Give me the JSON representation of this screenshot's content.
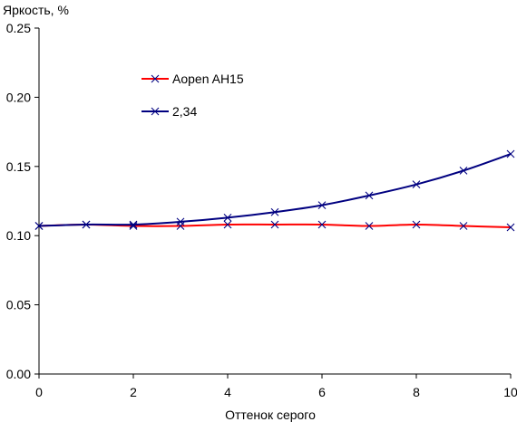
{
  "chart_data": {
    "type": "line",
    "title": "",
    "ylabel": "Яркость, %",
    "xlabel": "Оттенок серого",
    "xlim": [
      0,
      10
    ],
    "ylim": [
      0,
      0.25
    ],
    "x_ticks": [
      0,
      2,
      4,
      6,
      8,
      10
    ],
    "x_tick_labels": [
      "0",
      "2",
      "4",
      "6",
      "8",
      "10"
    ],
    "y_ticks": [
      0,
      0.05,
      0.1,
      0.15,
      0.2,
      0.25
    ],
    "y_tick_labels": [
      "0.00",
      "0.05",
      "0.10",
      "0.15",
      "0.20",
      "0.25"
    ],
    "grid": false,
    "legend_position": "upper-left-inside",
    "x": [
      0,
      1,
      2,
      3,
      4,
      5,
      6,
      7,
      8,
      9,
      10
    ],
    "series": [
      {
        "name": "Aopen AH15",
        "color": "#ff0000",
        "marker": "x",
        "values": [
          0.107,
          0.108,
          0.107,
          0.107,
          0.108,
          0.108,
          0.108,
          0.107,
          0.108,
          0.107,
          0.106
        ]
      },
      {
        "name": "2,34",
        "color": "#000080",
        "marker": "x",
        "values": [
          0.107,
          0.108,
          0.108,
          0.11,
          0.113,
          0.117,
          0.122,
          0.129,
          0.137,
          0.147,
          0.159
        ]
      }
    ]
  }
}
